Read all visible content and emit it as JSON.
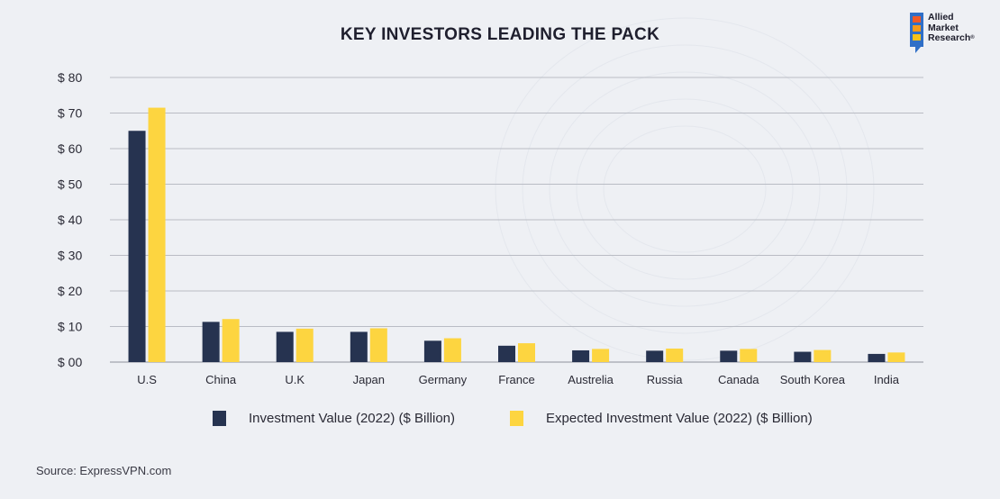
{
  "title": "KEY INVESTORS LEADING THE PACK",
  "logo": {
    "lines": [
      "Allied",
      "Market",
      "Research"
    ],
    "mark": "®"
  },
  "source": "Source: ExpressVPN.com",
  "colors": {
    "series1": "#263350",
    "series2": "#fdd540",
    "grid": "#b9bcc4",
    "axis_text": "#2a2a35"
  },
  "chart_data": {
    "type": "bar",
    "title": "KEY INVESTORS LEADING THE PACK",
    "xlabel": "",
    "ylabel": "",
    "categories": [
      "U.S",
      "China",
      "U.K",
      "Japan",
      "Germany",
      "France",
      "Austrelia",
      "Russia",
      "Canada",
      "South Korea",
      "India"
    ],
    "series": [
      {
        "name": "Investment Value (2022) ($ Billion)",
        "values": [
          65,
          11.3,
          8.5,
          8.5,
          6.0,
          4.6,
          3.3,
          3.2,
          3.2,
          2.9,
          2.3
        ]
      },
      {
        "name": "Expected Investment Value (2022) ($ Billion)",
        "values": [
          71.5,
          12.1,
          9.4,
          9.5,
          6.7,
          5.3,
          3.7,
          3.8,
          3.7,
          3.4,
          2.7
        ]
      }
    ],
    "ylim": [
      0,
      80
    ],
    "yticks": [
      0,
      10,
      20,
      30,
      40,
      50,
      60,
      70,
      80
    ],
    "ytick_labels": [
      "$ 00",
      "$ 10",
      "$ 20",
      "$ 30",
      "$ 40",
      "$ 50",
      "$ 60",
      "$ 70",
      "$ 80"
    ],
    "grid": true,
    "legend_position": "bottom"
  }
}
